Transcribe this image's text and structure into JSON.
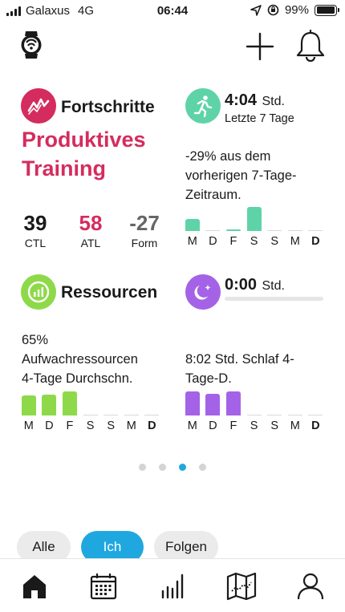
{
  "status_bar": {
    "carrier": "Galaxus",
    "network": "4G",
    "time": "06:44",
    "battery": "99%",
    "battery_level": 0.99
  },
  "header": {
    "watch_icon": "watch-icon",
    "add_icon": "plus-icon",
    "notifications_icon": "bell-icon"
  },
  "progress_card": {
    "title": "Fortschritte",
    "status_line1": "Produktives",
    "status_line2": "Training",
    "icon": "trend-icon",
    "color": "#d42c5e",
    "ctl_value": "39",
    "ctl_label": "CTL",
    "atl_value": "58",
    "atl_label": "ATL",
    "form_value": "-27",
    "form_label": "Form"
  },
  "activity_card": {
    "value": "4:04",
    "unit": "Std.",
    "subtitle": "Letzte 7 Tage",
    "text_line1": "-29% aus dem",
    "text_line2": "vorherigen 7-Tage-",
    "text_line3": "Zeitraum.",
    "icon": "running-icon",
    "color": "#5fd3a8",
    "bars": [
      0.5,
      0,
      0.05,
      1.0,
      0,
      0,
      0
    ],
    "days": [
      "M",
      "D",
      "F",
      "S",
      "S",
      "M",
      "D"
    ]
  },
  "resources_card": {
    "title": "Ressourcen",
    "text_line1": "65%",
    "text_line2": "Aufwachressourcen",
    "text_line3": "4-Tage Durchschn.",
    "icon": "battery-level-icon",
    "color": "#8ed94a",
    "bars": [
      0.82,
      0.88,
      1.0,
      0,
      0,
      0,
      0
    ],
    "days": [
      "M",
      "D",
      "F",
      "S",
      "S",
      "M",
      "D"
    ]
  },
  "sleep_card": {
    "value": "0:00",
    "unit": "Std.",
    "text_line1": "8:02 Std. Schlaf 4-",
    "text_line2": "Tage-D.",
    "icon": "moon-icon",
    "color": "#a463e6",
    "progress": 0,
    "bars": [
      1.0,
      0.9,
      1.0,
      0,
      0,
      0,
      0
    ],
    "days": [
      "M",
      "D",
      "F",
      "S",
      "S",
      "M",
      "D"
    ]
  },
  "pager": {
    "count": 4,
    "active": 3
  },
  "filters": [
    "Alle",
    "Ich",
    "Folgen"
  ],
  "filter_active": "Ich",
  "nav": [
    "home-icon",
    "calendar-icon",
    "stats-icon",
    "map-icon",
    "profile-icon"
  ]
}
